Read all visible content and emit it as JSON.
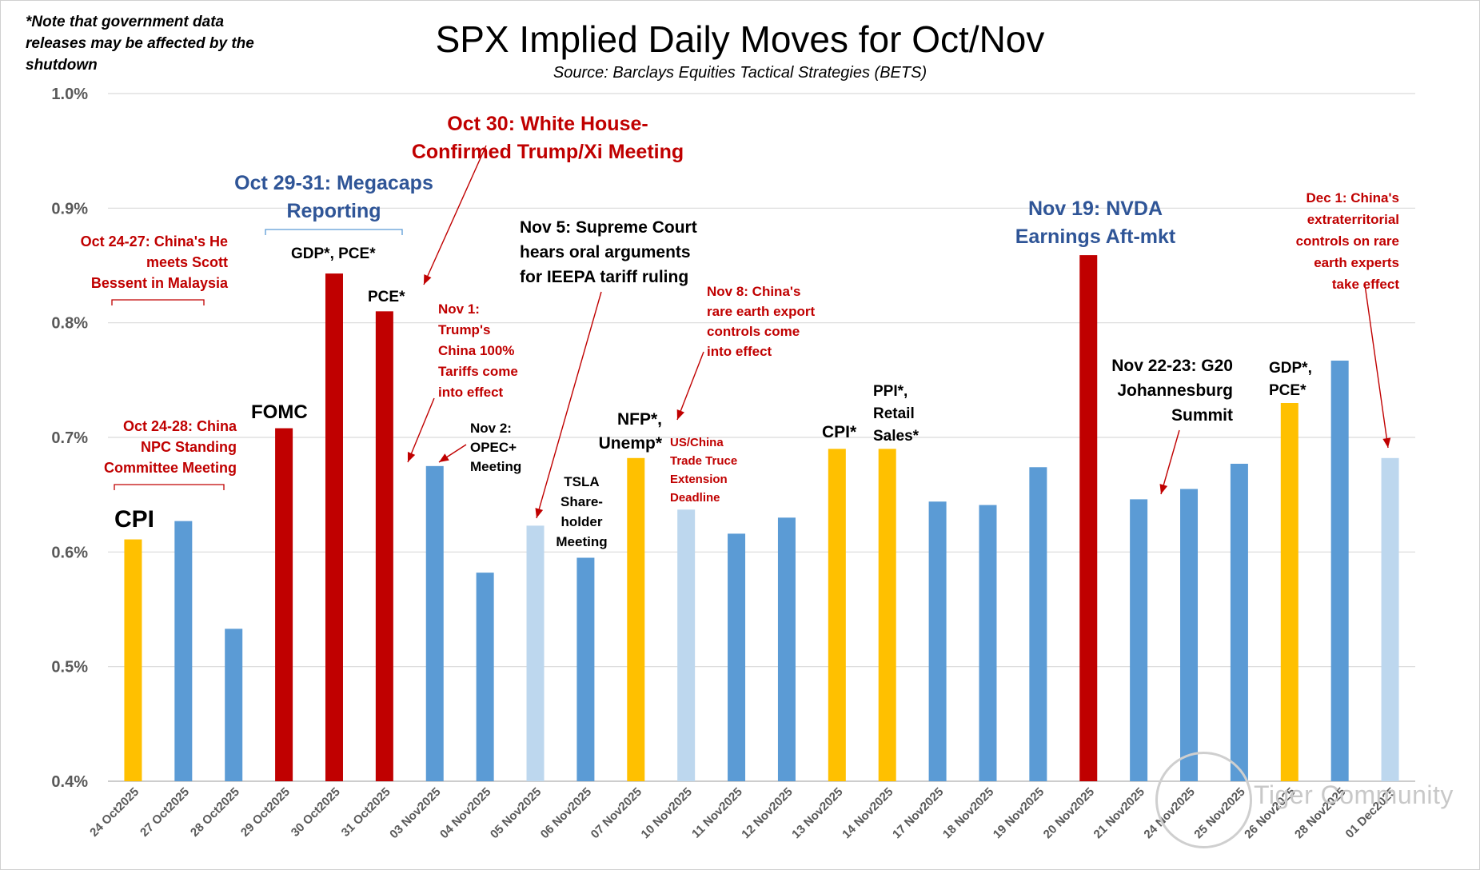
{
  "note": "*Note that government data releases may be affected by the shutdown",
  "title": "SPX Implied Daily Moves for Oct/Nov",
  "subtitle": "Source: Barclays Equities Tactical Strategies (BETS)",
  "colors": {
    "yellow": "#ffc000",
    "blue": "#5b9bd5",
    "lightblue": "#bdd7ee",
    "red": "#c00000",
    "grid": "#d9d9d9",
    "axis_text": "#595959"
  },
  "chart_data": {
    "type": "bar",
    "title": "SPX Implied Daily Moves for Oct/Nov",
    "subtitle": "Source: Barclays Equities Tactical Strategies (BETS)",
    "xlabel": "",
    "ylabel": "",
    "ylim": [
      0.4,
      1.0
    ],
    "yticks": [
      "0.4%",
      "0.5%",
      "0.6%",
      "0.7%",
      "0.8%",
      "0.9%",
      "1.0%"
    ],
    "grid": true,
    "categories": [
      "24 Oct2025",
      "27 Oct2025",
      "28 Oct2025",
      "29 Oct2025",
      "30 Oct2025",
      "31 Oct2025",
      "03 Nov2025",
      "04 Nov2025",
      "05 Nov2025",
      "06 Nov2025",
      "07 Nov2025",
      "10 Nov2025",
      "11 Nov2025",
      "12 Nov2025",
      "13 Nov2025",
      "14 Nov2025",
      "17 Nov2025",
      "18 Nov2025",
      "19 Nov2025",
      "20 Nov2025",
      "21 Nov2025",
      "24 Nov2025",
      "25 Nov2025",
      "26 Nov2025",
      "28 Nov2025",
      "01 Dec2025"
    ],
    "values": [
      0.611,
      0.627,
      0.533,
      0.708,
      0.843,
      0.81,
      0.675,
      0.582,
      0.623,
      0.595,
      0.682,
      0.637,
      0.616,
      0.63,
      0.69,
      0.69,
      0.644,
      0.641,
      0.674,
      0.859,
      0.646,
      0.655,
      0.677,
      0.73,
      0.767,
      0.682
    ],
    "bar_colors": [
      "yellow",
      "blue",
      "blue",
      "red",
      "red",
      "red",
      "blue",
      "blue",
      "lightblue",
      "blue",
      "yellow",
      "lightblue",
      "blue",
      "blue",
      "yellow",
      "yellow",
      "blue",
      "blue",
      "blue",
      "red",
      "blue",
      "blue",
      "blue",
      "yellow",
      "blue",
      "lightblue"
    ]
  },
  "annotations": {
    "oct24_27": "Oct 24-27: China's He\nmeets Scott\nBessent in Malaysia",
    "oct24_28": "Oct 24-28: China\nNPC Standing\nCommittee Meeting",
    "cpi_oct": "CPI",
    "fomc": "FOMC",
    "megacaps": "Oct 29-31: Megacaps\nReporting",
    "gdp_pce_oct": "GDP*, PCE*",
    "pce_oct31": "PCE*",
    "oct30": "Oct 30: White House-\nConfirmed Trump/Xi Meeting",
    "nov1": "Nov 1:\nTrump's\nChina 100%\nTariffs come\ninto effect",
    "nov2": "Nov 2:\nOPEC+\nMeeting",
    "nov5": "Nov 5: Supreme Court\nhears oral arguments\nfor IEEPA tariff ruling",
    "tsla": "TSLA\nShare-\nholder\nMeeting",
    "nfp": "NFP*,\nUnemp*",
    "nov8": "Nov 8: China's\nrare earth export\ncontrols come\ninto effect",
    "truce": "US/China\nTrade Truce\nExtension\nDeadline",
    "cpi_nov": "CPI*",
    "ppi": "PPI*,\nRetail\nSales*",
    "nvda": "Nov 19: NVDA\nEarnings Aft-mkt",
    "g20": "Nov 22-23: G20\nJohannesburg\nSummit",
    "gdp_pce_nov": "GDP*,\nPCE*",
    "dec1": "Dec 1: China's\nextraterritorial\ncontrols on rare\nearth experts\ntake effect"
  },
  "watermark": "Tiger Community"
}
